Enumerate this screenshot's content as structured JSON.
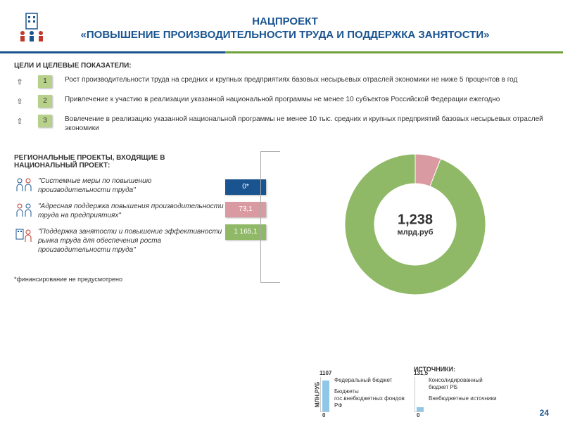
{
  "header": {
    "line1": "НАЦПРОЕКТ",
    "line2": "«ПОВЫШЕНИЕ ПРОИЗВОДИТЕЛЬНОСТИ ТРУДА И ПОДДЕРЖКА ЗАНЯТОСТИ»",
    "title_color": "#1a5490",
    "accent_blue": "#1a5490",
    "accent_green": "#6fa03e"
  },
  "goals_title": "ЦЕЛИ И ЦЕЛЕВЫЕ ПОКАЗАТЕЛИ:",
  "goals": [
    {
      "num": "1",
      "text": "Рост производительности труда на средних и крупных предприятиях базовых несырьевых отраслей экономики не ниже 5 процентов в год"
    },
    {
      "num": "2",
      "text": "Привлечение к участию в реализации указанной национальной программы не менее 10 субъектов Российской Федерации ежегодно"
    },
    {
      "num": "3",
      "text": "Вовлечение в реализацию указанной национальной программы не менее 10 тыс. средних и крупных предприятий базовых несырьевых отраслей экономики"
    }
  ],
  "goal_badge_bg": "#b8d18a",
  "projects_title": "РЕГИОНАЛЬНЫЕ ПРОЕКТЫ, ВХОДЯЩИЕ В НАЦИОНАЛЬНЫЙ ПРОЕКТ:",
  "projects": [
    {
      "text": "\"Системные меры по повышению производительности труда\""
    },
    {
      "text": "\"Адресная поддержка повышения производительности труда на предприятиях\""
    },
    {
      "text": "\"Поддержка занятости и повышение эффективности рынка труда для обеспечения роста производительности труда\""
    }
  ],
  "footnote": "*финансирование не предусмотрено",
  "chips": [
    {
      "label": "0*",
      "color": "#1a5490"
    },
    {
      "label": "73,1",
      "color": "#d99aa1"
    },
    {
      "label": "1 165,1",
      "color": "#8fb966"
    }
  ],
  "donut": {
    "type": "donut",
    "values": [
      0,
      73.1,
      1165.1
    ],
    "colors": [
      "#1a5490",
      "#d99aa1",
      "#8fb966"
    ],
    "center_value": "1,238",
    "center_unit": "млрд.руб",
    "inner_radius": 58,
    "outer_radius": 100,
    "background_color": "#ffffff"
  },
  "sources": {
    "title": "ИСТОЧНИКИ:",
    "yaxis": "МЛН.РУБ",
    "left": {
      "top_value": "1107",
      "bot_value": "0",
      "bar_color": "#8fc7e8",
      "label_top": "Федеральный бюджет",
      "label_bot": "Бюджеты гос.внебюджетных фондов РФ"
    },
    "right": {
      "top_value": "131,5",
      "bot_value": "0",
      "bar_color": "#8fc7e8",
      "label_top": "Консолидированный бюджет РБ",
      "label_bot": "Внебюджетные источники"
    }
  },
  "page_number": "24"
}
